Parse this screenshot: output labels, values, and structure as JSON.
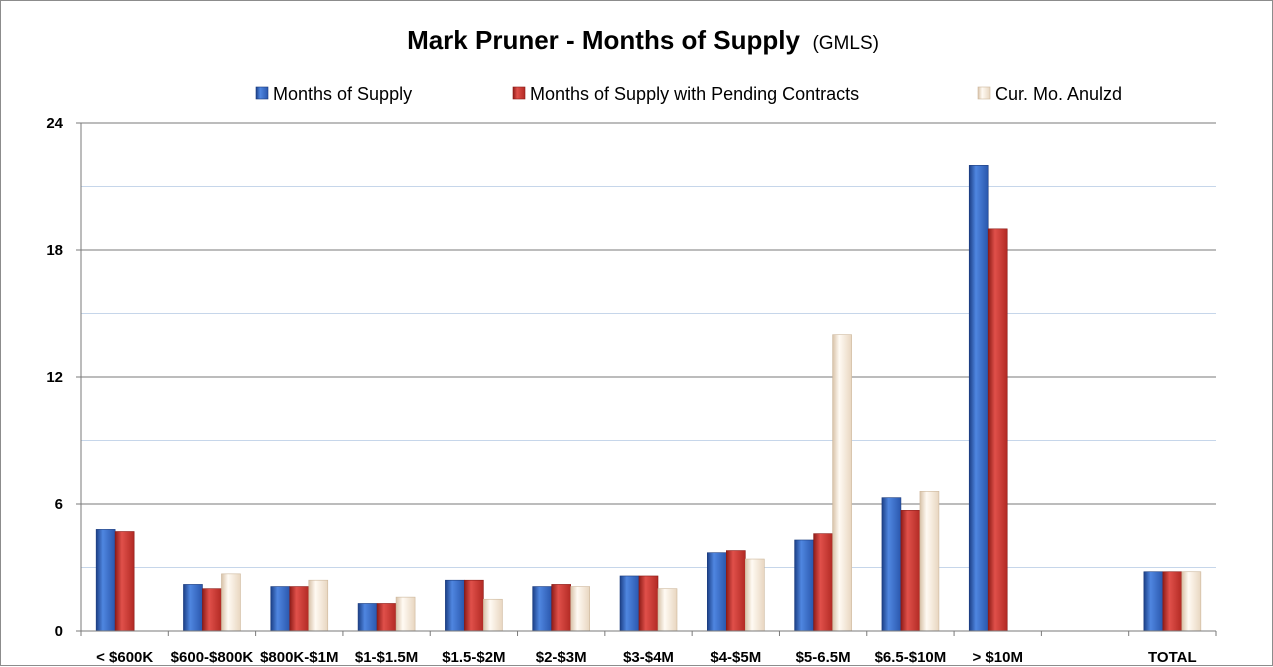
{
  "chart_data": {
    "type": "bar",
    "title": "Mark Pruner - Months of Supply",
    "subtitle": "(GMLS)",
    "categories": [
      "< $600K",
      "$600-$800K",
      "$800K-$1M",
      "$1-$1.5M",
      "$1.5-$2M",
      "$2-$3M",
      "$3-$4M",
      "$4-$5M",
      "$5-6.5M",
      "$6.5-$10M",
      "> $10M",
      "",
      "TOTAL"
    ],
    "series": [
      {
        "name": "Months of Supply",
        "color": "#2e5eb8",
        "values": [
          4.8,
          2.2,
          2.1,
          1.3,
          2.4,
          2.1,
          2.6,
          3.7,
          4.3,
          6.3,
          22.0,
          null,
          2.8
        ]
      },
      {
        "name": "Months of Supply with Pending Contracts",
        "color": "#c0302a",
        "values": [
          4.7,
          2.0,
          2.1,
          1.3,
          2.4,
          2.2,
          2.6,
          3.8,
          4.6,
          5.7,
          19.0,
          null,
          2.8
        ]
      },
      {
        "name": "Cur. Mo. Anulzd",
        "color": "#f2e4d2",
        "values": [
          null,
          2.7,
          2.4,
          1.6,
          1.5,
          2.1,
          2.0,
          3.4,
          14.0,
          6.6,
          null,
          null,
          2.8
        ]
      }
    ],
    "ylim": [
      0,
      24
    ],
    "yticks": [
      "0",
      "6",
      "12",
      "18",
      "24"
    ],
    "grid": true,
    "legend_position": "top"
  }
}
